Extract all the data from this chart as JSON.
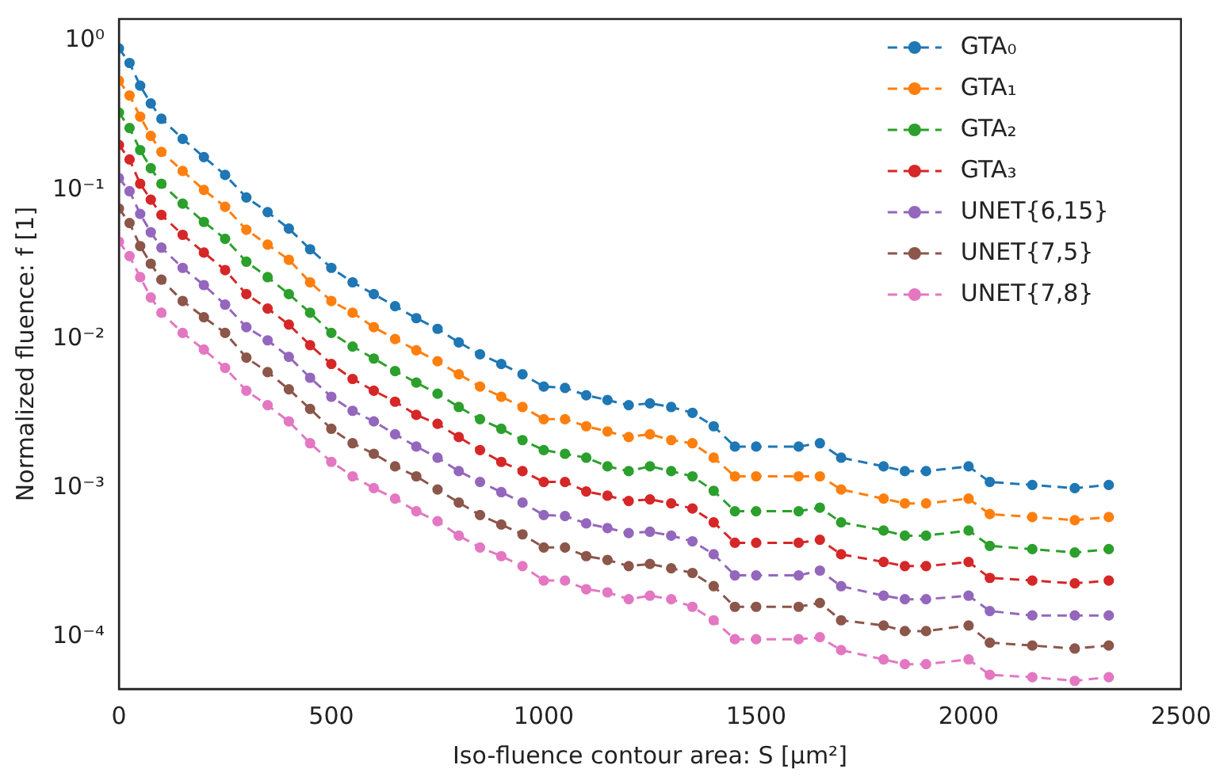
{
  "chart_data": {
    "type": "line",
    "xlabel": "Iso-fluence contour area: S [μm²]",
    "ylabel": "Normalized fluence: f [1]",
    "x": [
      0,
      25,
      50,
      75,
      100,
      150,
      200,
      250,
      300,
      350,
      400,
      450,
      500,
      550,
      600,
      650,
      700,
      750,
      800,
      850,
      900,
      950,
      1000,
      1050,
      1100,
      1150,
      1200,
      1250,
      1300,
      1350,
      1400,
      1450,
      1500,
      1600,
      1650,
      1700,
      1800,
      1850,
      1900,
      2000,
      2050,
      2150,
      2250,
      2330
    ],
    "series": [
      {
        "name": "GTA₀",
        "color": "#1f77b4",
        "values": [
          0.89,
          0.71,
          0.5,
          0.38,
          0.3,
          0.22,
          0.166,
          0.126,
          0.089,
          0.071,
          0.055,
          0.04,
          0.03,
          0.024,
          0.02,
          0.0166,
          0.0138,
          0.0117,
          0.0095,
          0.0079,
          0.0068,
          0.0058,
          0.0048,
          0.0047,
          0.0042,
          0.0039,
          0.0036,
          0.0037,
          0.0035,
          0.0032,
          0.0026,
          0.0019,
          0.0019,
          0.0019,
          0.002,
          0.0016,
          0.0014,
          0.0013,
          0.0013,
          0.0014,
          0.0011,
          0.00105,
          0.001,
          0.00105
        ]
      },
      {
        "name": "GTA₁",
        "color": "#ff7f0e",
        "values": [
          0.54,
          0.43,
          0.31,
          0.23,
          0.18,
          0.134,
          0.1,
          0.077,
          0.054,
          0.043,
          0.034,
          0.024,
          0.018,
          0.015,
          0.012,
          0.01,
          0.0084,
          0.0071,
          0.0058,
          0.0048,
          0.0041,
          0.0035,
          0.0029,
          0.0029,
          0.0026,
          0.0024,
          0.0022,
          0.0023,
          0.0021,
          0.002,
          0.0016,
          0.0012,
          0.0012,
          0.0012,
          0.0012,
          0.00098,
          0.00085,
          0.00079,
          0.00079,
          0.00085,
          0.00067,
          0.00064,
          0.00061,
          0.00064
        ]
      },
      {
        "name": "GTA₂",
        "color": "#2ca02c",
        "values": [
          0.33,
          0.26,
          0.185,
          0.14,
          0.11,
          0.081,
          0.061,
          0.047,
          0.033,
          0.026,
          0.02,
          0.015,
          0.011,
          0.0089,
          0.0074,
          0.0061,
          0.0051,
          0.0043,
          0.0035,
          0.0029,
          0.0025,
          0.0021,
          0.0018,
          0.0017,
          0.0016,
          0.0014,
          0.0013,
          0.0014,
          0.0013,
          0.0012,
          0.00096,
          0.0007,
          0.0007,
          0.0007,
          0.00074,
          0.00059,
          0.00052,
          0.00048,
          0.00048,
          0.00052,
          0.00041,
          0.00039,
          0.00037,
          0.00039
        ]
      },
      {
        "name": "GTA₃",
        "color": "#d62728",
        "values": [
          0.2,
          0.16,
          0.11,
          0.086,
          0.068,
          0.05,
          0.038,
          0.029,
          0.02,
          0.016,
          0.0125,
          0.0091,
          0.0068,
          0.0054,
          0.0045,
          0.0038,
          0.0031,
          0.0027,
          0.0022,
          0.0018,
          0.0015,
          0.0013,
          0.0011,
          0.0011,
          0.00095,
          0.00089,
          0.00082,
          0.00084,
          0.00079,
          0.00073,
          0.00059,
          0.00043,
          0.00043,
          0.00043,
          0.00045,
          0.00036,
          0.00032,
          0.0003,
          0.0003,
          0.00032,
          0.00025,
          0.00024,
          0.00023,
          0.00024
        ]
      },
      {
        "name": "UNET{6,15}",
        "color": "#9467bd",
        "values": [
          0.12,
          0.098,
          0.069,
          0.052,
          0.041,
          0.03,
          0.023,
          0.017,
          0.012,
          0.0098,
          0.0076,
          0.0055,
          0.0041,
          0.0033,
          0.0028,
          0.0023,
          0.0019,
          0.0016,
          0.0013,
          0.0011,
          0.00094,
          0.0008,
          0.00066,
          0.00065,
          0.00058,
          0.00054,
          0.0005,
          0.00051,
          0.00048,
          0.00044,
          0.00036,
          0.00026,
          0.00026,
          0.00026,
          0.00028,
          0.00022,
          0.00019,
          0.00018,
          0.00018,
          0.00019,
          0.00015,
          0.00014,
          0.00014,
          0.00014
        ]
      },
      {
        "name": "UNET{7,5}",
        "color": "#8c564b",
        "values": [
          0.075,
          0.06,
          0.042,
          0.032,
          0.025,
          0.018,
          0.014,
          0.011,
          0.0075,
          0.006,
          0.0046,
          0.0034,
          0.0025,
          0.002,
          0.0017,
          0.0014,
          0.0012,
          0.00098,
          0.0008,
          0.00066,
          0.00057,
          0.00049,
          0.0004,
          0.0004,
          0.00035,
          0.00033,
          0.0003,
          0.00031,
          0.00029,
          0.00027,
          0.00022,
          0.00016,
          0.00016,
          0.00016,
          0.00017,
          0.00013,
          0.00012,
          0.00011,
          0.00011,
          0.00012,
          9.2e-05,
          8.8e-05,
          8.4e-05,
          8.8e-05
        ]
      },
      {
        "name": "UNET{7,8}",
        "color": "#e377c2",
        "values": [
          0.045,
          0.036,
          0.026,
          0.019,
          0.015,
          0.011,
          0.0085,
          0.0064,
          0.0045,
          0.0036,
          0.0028,
          0.002,
          0.0015,
          0.0012,
          0.001,
          0.00085,
          0.0007,
          0.0006,
          0.00048,
          0.0004,
          0.00035,
          0.0003,
          0.00024,
          0.00024,
          0.00021,
          0.0002,
          0.00018,
          0.00019,
          0.00018,
          0.00016,
          0.00013,
          9.7e-05,
          9.7e-05,
          9.7e-05,
          0.0001,
          8.2e-05,
          7.1e-05,
          6.6e-05,
          6.6e-05,
          7.1e-05,
          5.6e-05,
          5.4e-05,
          5.1e-05,
          5.4e-05
        ]
      }
    ],
    "xlim": [
      0,
      2500
    ],
    "xticks": [
      0,
      500,
      1000,
      1500,
      2000,
      2500
    ],
    "ylim": [
      4.5e-05,
      1.4
    ],
    "log": "y",
    "yticks": [
      {
        "value": 0.0001,
        "label": "10⁻⁴"
      },
      {
        "value": 0.001,
        "label": "10⁻³"
      },
      {
        "value": 0.01,
        "label": "10⁻²"
      },
      {
        "value": 0.1,
        "label": "10⁻¹"
      },
      {
        "value": 1,
        "label": "10⁰"
      }
    ],
    "grid": false,
    "legend": "top right",
    "marker": "circle",
    "line_style": "dashed"
  }
}
